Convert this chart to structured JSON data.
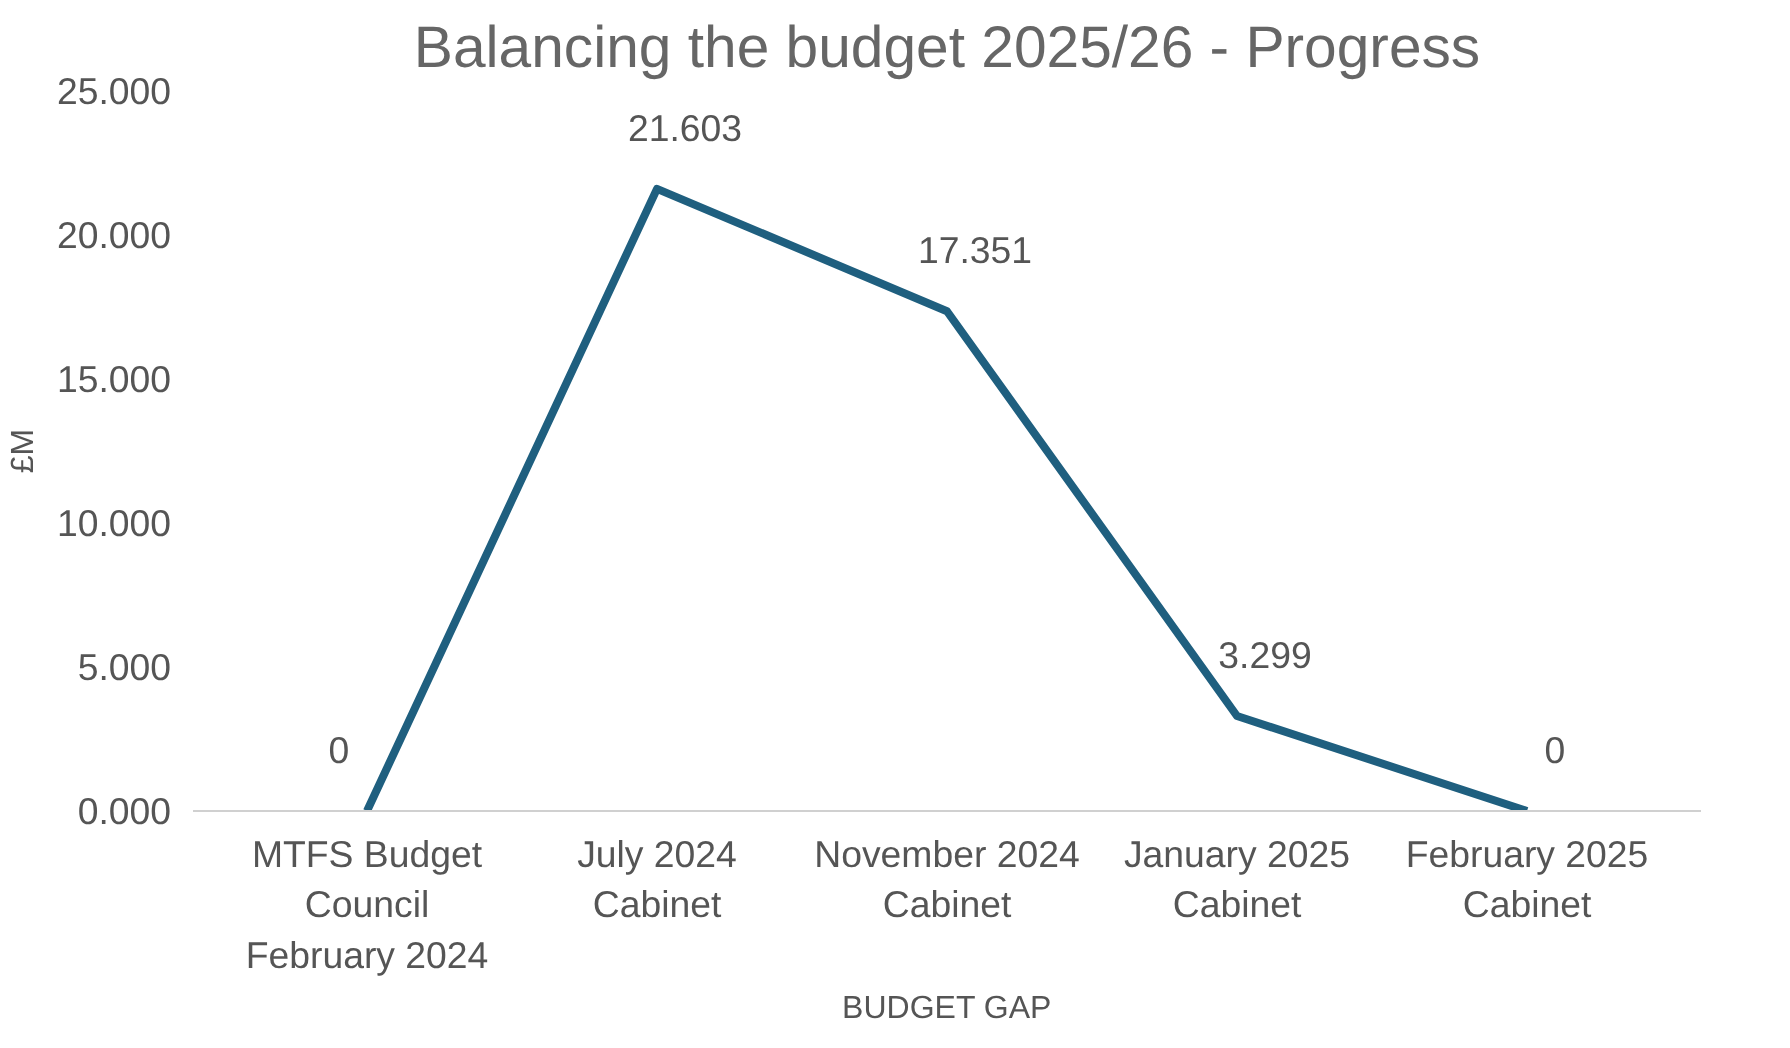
{
  "chart_data": {
    "type": "line",
    "title": "Balancing the budget 2025/26 - Progress",
    "xlabel": "BUDGET GAP",
    "ylabel": "£M",
    "categories": [
      "MTFS Budget Council February 2024",
      "July 2024 Cabinet",
      "November 2024 Cabinet",
      "January 2025 Cabinet",
      "February 2025 Cabinet"
    ],
    "series": [
      {
        "color": "#1f5f7f",
        "values": [
          0,
          21.603,
          17.351,
          3.299,
          0
        ],
        "value_labels": [
          "0",
          "21.603",
          "17.351",
          "3.299",
          "0"
        ]
      }
    ],
    "ylim": [
      0,
      25
    ],
    "yticks": [
      {
        "value": 0,
        "label": "0.000"
      },
      {
        "value": 5,
        "label": "5.000"
      },
      {
        "value": 10,
        "label": "10.000"
      },
      {
        "value": 15,
        "label": "15.000"
      },
      {
        "value": 20,
        "label": "20.000"
      },
      {
        "value": 25,
        "label": "25.000"
      }
    ],
    "grid": false,
    "marker": "none",
    "line_style": "solid"
  }
}
